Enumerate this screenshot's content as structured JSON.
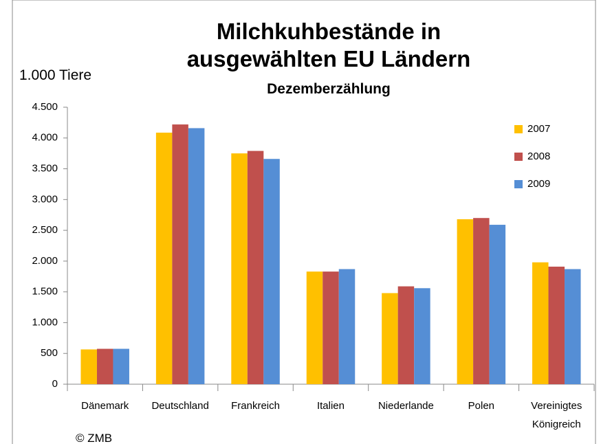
{
  "chart_data": {
    "type": "bar",
    "title": "Milchkuhbestände in ausgewählten EU Ländern",
    "subtitle": "Dezemberzählung",
    "y_label": "1.000 Tiere",
    "annotation": "© ZMB",
    "categories": [
      "Dänemark",
      "Deutschland",
      "Frankreich",
      "Italien",
      "Niederlande",
      "Polen",
      "Vereinigtes Königreich"
    ],
    "series": [
      {
        "name": "2007",
        "color": "#ffc000",
        "values": [
          565,
          4087,
          3750,
          1830,
          1480,
          2680,
          1980
        ]
      },
      {
        "name": "2008",
        "color": "#c0504d",
        "values": [
          575,
          4220,
          3790,
          1830,
          1590,
          2700,
          1910
        ]
      },
      {
        "name": "2009",
        "color": "#558ed5",
        "values": [
          575,
          4160,
          3660,
          1870,
          1560,
          2590,
          1870
        ]
      }
    ],
    "ylim": [
      0,
      4500
    ],
    "yticks": [
      0,
      500,
      {
        "value": 1000,
        "label": "1.000"
      },
      {
        "value": 1500,
        "label": "1.500"
      },
      {
        "value": 2000,
        "label": "2.000"
      },
      {
        "value": 2500,
        "label": "2.500"
      },
      {
        "value": 3000,
        "label": "3.000"
      },
      {
        "value": 3500,
        "label": "3.500"
      },
      {
        "value": 4000,
        "label": "4.000"
      },
      {
        "value": 4500,
        "label": "4.500"
      }
    ],
    "legend": "top-right"
  }
}
